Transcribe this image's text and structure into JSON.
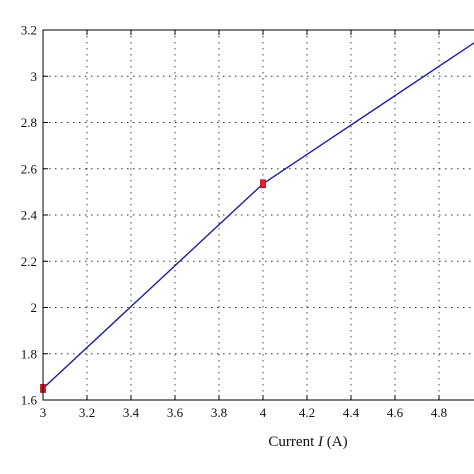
{
  "chart_data": {
    "type": "line",
    "xlabel_prefix": "Current ",
    "xlabel_var": "I",
    "xlabel_suffix": " (A)",
    "xlim": [
      3,
      5
    ],
    "ylim": [
      1.6,
      3.2
    ],
    "x_ticks": [
      "3",
      "3.2",
      "3.4",
      "3.6",
      "3.8",
      "4",
      "4.2",
      "4.4",
      "4.6",
      "4.8"
    ],
    "y_ticks": [
      "1.6",
      "1.8",
      "2",
      "2.2",
      "2.4",
      "2.6",
      "2.8",
      "3",
      "3.2"
    ],
    "grid": true,
    "series": [
      {
        "color": "#1f1fa0",
        "x": [
          3.0,
          4.0,
          5.0
        ],
        "y": [
          1.65,
          2.535,
          3.17
        ]
      }
    ],
    "markers": [
      {
        "x": 3.0,
        "y": 1.65,
        "color": "#e0202a"
      },
      {
        "x": 4.0,
        "y": 2.535,
        "color": "#e0202a"
      }
    ]
  }
}
